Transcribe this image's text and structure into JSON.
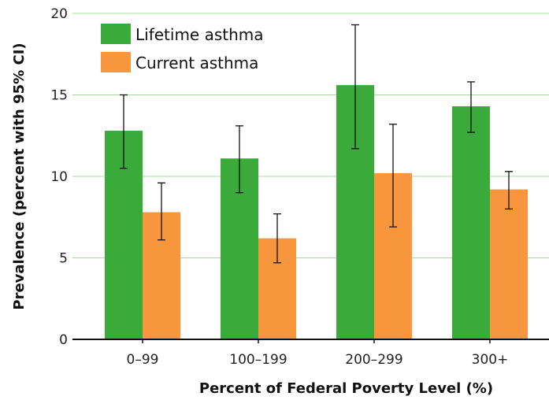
{
  "chart_data": {
    "type": "bar",
    "title": "",
    "xlabel": "Percent of Federal Poverty Level (%)",
    "ylabel": "Prevalence (percent with 95% CI)",
    "ylim": [
      0,
      20
    ],
    "yticks": [
      0,
      5,
      10,
      15,
      20
    ],
    "grid": true,
    "legend_position": "top-left",
    "categories": [
      "0–99",
      "100–199",
      "200–299",
      "300+"
    ],
    "series": [
      {
        "name": "Lifetime asthma",
        "color": "#3aaa3a",
        "values": [
          12.8,
          11.1,
          15.6,
          14.3
        ],
        "ci_low": [
          10.5,
          9.0,
          11.7,
          12.7
        ],
        "ci_high": [
          15.0,
          13.1,
          19.3,
          15.8
        ]
      },
      {
        "name": "Current asthma",
        "color": "#f7963c",
        "values": [
          7.8,
          6.2,
          10.2,
          9.2
        ],
        "ci_low": [
          6.1,
          4.7,
          6.9,
          8.0
        ],
        "ci_high": [
          9.6,
          7.7,
          13.2,
          10.3
        ]
      }
    ],
    "gridline_color": "#a8d8a0"
  }
}
